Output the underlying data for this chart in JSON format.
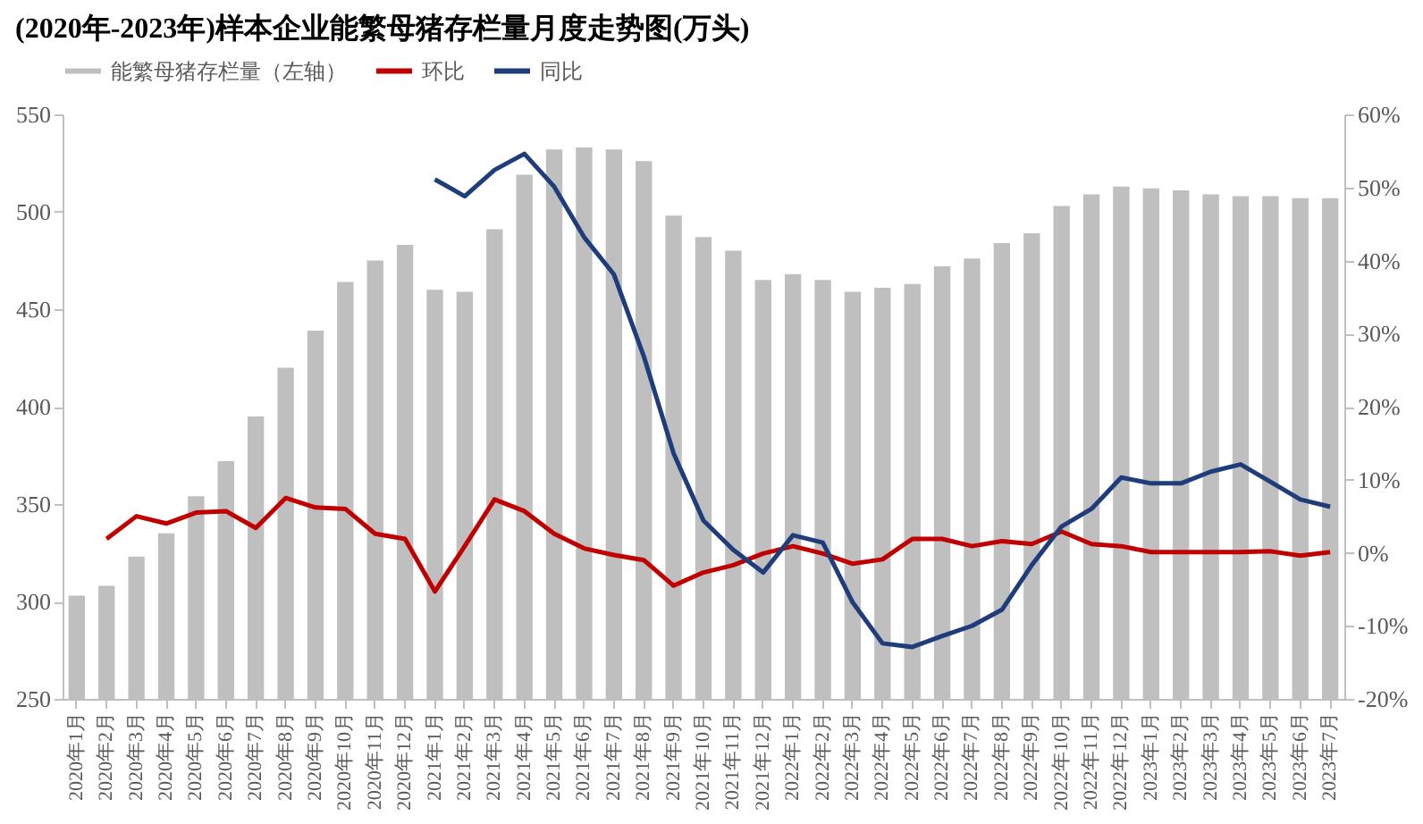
{
  "chart_data": {
    "type": "bar",
    "title": "(2020年-2023年)样本企业能繁母猪存栏量月度走势图(万头)",
    "categories": [
      "2020年1月",
      "2020年2月",
      "2020年3月",
      "2020年4月",
      "2020年5月",
      "2020年6月",
      "2020年7月",
      "2020年8月",
      "2020年9月",
      "2020年10月",
      "2020年11月",
      "2020年12月",
      "2021年1月",
      "2021年2月",
      "2021年3月",
      "2021年4月",
      "2021年5月",
      "2021年6月",
      "2021年7月",
      "2021年8月",
      "2021年9月",
      "2021年10月",
      "2021年11月",
      "2021年12月",
      "2022年1月",
      "2022年2月",
      "2022年3月",
      "2022年4月",
      "2022年5月",
      "2022年6月",
      "2022年7月",
      "2022年8月",
      "2022年9月",
      "2022年10月",
      "2022年11月",
      "2022年12月",
      "2023年1月",
      "2023年2月",
      "2023年3月",
      "2023年4月",
      "2023年5月",
      "2023年6月",
      "2023年7月"
    ],
    "series": [
      {
        "name": "能繁母猪存栏量（左轴）",
        "color": "#bfbfbf",
        "values": [
          303,
          308,
          323,
          335,
          354,
          372,
          395,
          420,
          439,
          464,
          475,
          483,
          460,
          459,
          491,
          519,
          532,
          533,
          532,
          526,
          498,
          487,
          480,
          465,
          468,
          465,
          459,
          461,
          463,
          472,
          476,
          484,
          489,
          503,
          509,
          513,
          512,
          511,
          509,
          508,
          508,
          507,
          507
        ]
      },
      {
        "name": "环比",
        "type": "line",
        "axis": "y2",
        "color": "#c00000",
        "values": [
          null,
          1.9,
          5.0,
          4.0,
          5.5,
          5.7,
          3.4,
          7.5,
          6.2,
          6.0,
          2.6,
          1.9,
          -5.3,
          0.9,
          7.3,
          5.7,
          2.6,
          0.6,
          -0.3,
          -1.0,
          -4.5,
          -2.7,
          -1.7,
          -0.1,
          0.9,
          -0.1,
          -1.5,
          -0.9,
          1.9,
          1.9,
          0.9,
          1.6,
          1.2,
          2.9,
          1.2,
          0.9,
          0.1,
          0.1,
          0.1,
          0.1,
          0.2,
          -0.4,
          0.1
        ]
      },
      {
        "name": "同比",
        "type": "line",
        "axis": "y2",
        "color": "#1f3d7a",
        "values": [
          null,
          null,
          null,
          null,
          null,
          null,
          null,
          null,
          null,
          null,
          null,
          null,
          51.1,
          48.8,
          52.4,
          54.6,
          50.1,
          43.2,
          38.1,
          26.9,
          13.6,
          4.4,
          0.4,
          -2.7,
          2.4,
          1.4,
          -6.8,
          -12.4,
          -12.9,
          -11.4,
          -10.0,
          -7.8,
          -1.7,
          3.6,
          6.0,
          10.3,
          9.5,
          9.5,
          11.1,
          12.1,
          9.7,
          7.3,
          6.3
        ]
      }
    ],
    "ylim": [
      250,
      550
    ],
    "yticks": [
      250,
      300,
      350,
      400,
      450,
      500,
      550
    ],
    "y2lim": [
      -20,
      60
    ],
    "y2ticks": [
      {
        "value": -20,
        "label": "-20%"
      },
      {
        "value": -10,
        "label": "-10%"
      },
      {
        "value": 0,
        "label": "0%"
      },
      {
        "value": 10,
        "label": "10%"
      },
      {
        "value": 20,
        "label": "20%"
      },
      {
        "value": 30,
        "label": "30%"
      },
      {
        "value": 40,
        "label": "40%"
      },
      {
        "value": 50,
        "label": "50%"
      },
      {
        "value": 60,
        "label": "60%"
      }
    ],
    "legend": "top",
    "grid": false,
    "marker": "none",
    "line_style": "solid"
  }
}
